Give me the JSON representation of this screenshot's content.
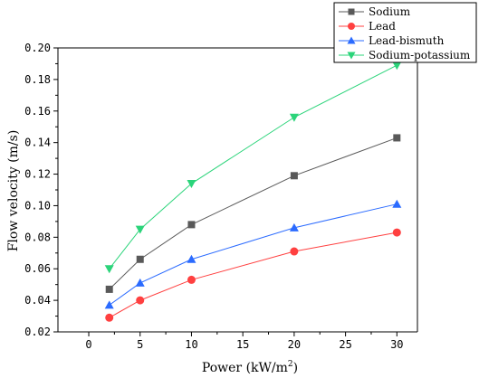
{
  "chart_data": {
    "type": "line",
    "xlabel": "Power (kW/m",
    "xlabel_sup": "2",
    "xlabel_close": ")",
    "ylabel": "Flow velocity (m/s)",
    "xlim": [
      -3,
      32
    ],
    "ylim": [
      0.02,
      0.2
    ],
    "x_ticks": [
      0,
      5,
      10,
      15,
      20,
      25,
      30
    ],
    "y_ticks": [
      0.02,
      0.04,
      0.06,
      0.08,
      0.1,
      0.12,
      0.14,
      0.16,
      0.18,
      0.2
    ],
    "y_tick_labels": [
      "0.02",
      "0.04",
      "0.06",
      "0.08",
      "0.10",
      "0.12",
      "0.14",
      "0.16",
      "0.18",
      "0.20"
    ],
    "grid": false,
    "legend_position": "top-right",
    "x": [
      2,
      5,
      10,
      20,
      30
    ],
    "series": [
      {
        "name": "Sodium",
        "marker": "square",
        "color": "#595959",
        "values": [
          0.047,
          0.066,
          0.088,
          0.119,
          0.143
        ]
      },
      {
        "name": "Lead",
        "marker": "circle",
        "color": "#ff4040",
        "values": [
          0.029,
          0.04,
          0.053,
          0.071,
          0.083
        ]
      },
      {
        "name": "Lead-bismuth",
        "marker": "triangle-up",
        "color": "#2b6bff",
        "values": [
          0.037,
          0.051,
          0.066,
          0.086,
          0.101
        ]
      },
      {
        "name": "Sodium-potassium",
        "marker": "triangle-down",
        "color": "#2bd47a",
        "values": [
          0.06,
          0.085,
          0.114,
          0.156,
          0.189
        ]
      }
    ]
  }
}
